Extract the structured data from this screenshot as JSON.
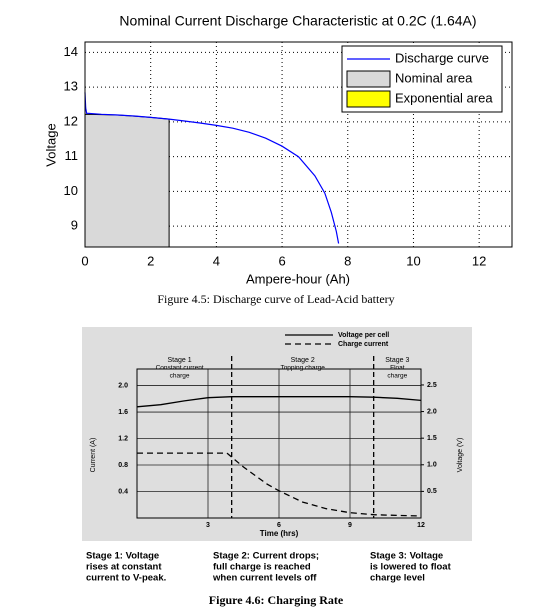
{
  "chart_data": [
    {
      "type": "line",
      "title": "Nominal Current Discharge Characteristic at 0.2C (1.64A)",
      "xlabel": "Ampere-hour (Ah)",
      "ylabel": "Voltage",
      "xlim": [
        0,
        13
      ],
      "ylim": [
        8.4,
        14.3
      ],
      "xticks": [
        0,
        2,
        4,
        6,
        8,
        10,
        12
      ],
      "yticks": [
        9,
        10,
        11,
        12,
        13,
        14
      ],
      "grid": true,
      "legend": "upper right",
      "series": [
        {
          "name": "Discharge curve",
          "color": "#0000ff",
          "style": "line",
          "x": [
            0,
            0.02,
            0.05,
            0.5,
            1,
            1.5,
            2,
            2.56,
            3,
            3.5,
            4,
            4.5,
            5,
            5.5,
            6,
            6.5,
            7,
            7.3,
            7.5,
            7.65,
            7.72
          ],
          "values": [
            12.85,
            12.4,
            12.25,
            12.22,
            12.2,
            12.17,
            12.13,
            12.08,
            12.03,
            11.97,
            11.9,
            11.82,
            11.7,
            11.53,
            11.3,
            11.0,
            10.45,
            9.95,
            9.4,
            8.85,
            8.5
          ]
        },
        {
          "name": "Nominal area",
          "color": "#d9d9d9",
          "style": "area",
          "x": [
            0,
            1,
            2,
            2.56
          ],
          "values": [
            12.22,
            12.2,
            12.13,
            12.08
          ]
        },
        {
          "name": "Exponential area",
          "color": "#ffff00",
          "style": "area",
          "x": [],
          "values": []
        }
      ],
      "caption": "Figure 4.5: Discharge curve of Lead-Acid battery"
    },
    {
      "type": "line",
      "xlabel": "Time (hrs)",
      "ylabel": "Current (A)",
      "y2label": "Voltage (V)",
      "xlim": [
        0,
        12
      ],
      "ylim": [
        0,
        2.25
      ],
      "y2lim": [
        0,
        2.8
      ],
      "xticks": [
        3,
        6,
        9,
        12
      ],
      "yticks": [
        {
          "value": 2,
          "label": "2.0"
        },
        1.6,
        1.2,
        0.8,
        0.4
      ],
      "y2ticks": [
        0.5,
        {
          "value": 1,
          "label": "1.0"
        },
        1.5,
        {
          "value": 2,
          "label": "2.0"
        },
        2.5
      ],
      "grid": true,
      "legend": "upper right",
      "stage_boundaries": [
        4,
        10
      ],
      "stages": [
        {
          "name": "Stage 1",
          "description": [
            "Constant current",
            "charge"
          ]
        },
        {
          "name": "Stage 2",
          "description": [
            "Topping charge"
          ]
        },
        {
          "name": "Stage 3",
          "description": [
            "Float",
            "charge"
          ]
        }
      ],
      "series": [
        {
          "name": "Voltage per cell",
          "color": "#000000",
          "linestyle": "solid",
          "axis": "y2",
          "x": [
            0,
            1,
            2,
            3,
            4,
            6,
            9,
            10,
            11,
            12
          ],
          "values": [
            2.09,
            2.13,
            2.2,
            2.26,
            2.28,
            2.28,
            2.28,
            2.27,
            2.25,
            2.21
          ]
        },
        {
          "name": "Charge current",
          "color": "#000000",
          "linestyle": "dashed",
          "x": [
            0,
            3.8,
            4.5,
            5,
            5.5,
            6,
            7,
            8,
            9,
            10,
            11,
            12
          ],
          "values": [
            0.98,
            0.98,
            0.77,
            0.64,
            0.51,
            0.41,
            0.24,
            0.14,
            0.08,
            0.05,
            0.04,
            0.03
          ]
        }
      ],
      "notes": [
        {
          "lines": [
            "Stage 1: Voltage",
            "rises at constant",
            "current to V-peak."
          ]
        },
        {
          "lines": [
            "Stage 2: Current drops;",
            "full charge is reached",
            "when current levels off"
          ]
        },
        {
          "lines": [
            "Stage 3: Voltage",
            "is lowered to float",
            "charge level"
          ]
        }
      ],
      "caption": "Figure 4.6: Charging Rate"
    }
  ]
}
